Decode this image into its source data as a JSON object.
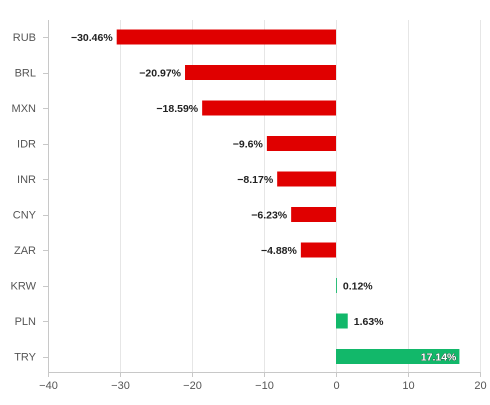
{
  "chart_data": {
    "type": "bar",
    "orientation": "horizontal",
    "title": "",
    "xlabel": "",
    "ylabel": "",
    "categories": [
      "RUB",
      "BRL",
      "MXN",
      "IDR",
      "INR",
      "CNY",
      "ZAR",
      "KRW",
      "PLN",
      "TRY"
    ],
    "values": [
      -30.46,
      -20.97,
      -18.59,
      -9.6,
      -8.17,
      -6.23,
      -4.88,
      0.12,
      1.63,
      17.14
    ],
    "value_labels": [
      "−30.46%",
      "−20.97%",
      "−18.59%",
      "−9.6%",
      "−8.17%",
      "−6.23%",
      "−4.88%",
      "0.12%",
      "1.63%",
      "17.14%"
    ],
    "xlim": [
      -40,
      20
    ],
    "xticks": [
      -40,
      -30,
      -20,
      -10,
      0,
      10,
      20
    ],
    "xtick_labels": [
      "−40",
      "−30",
      "−20",
      "−10",
      "0",
      "10",
      "20"
    ],
    "grid": "vertical",
    "legend": "none",
    "colors": {
      "negative": "#e00000",
      "positive": "#12b86a",
      "grid": "#e6e6e6",
      "axis": "#c8c8c8"
    }
  }
}
